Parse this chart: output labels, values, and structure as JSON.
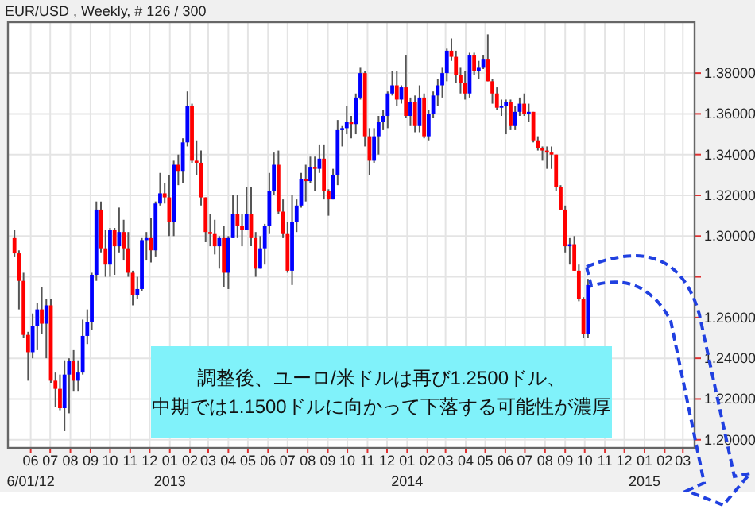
{
  "chart_data": {
    "type": "candlestick",
    "title": "EUR/USD , Weekly, # 126 / 300",
    "annotations": [
      "調整後、ユーロ/米ドルは再び1.2500ドル、",
      "中期では1.1500ドルに向かって下落する可能性が濃厚"
    ],
    "x": [
      "2012-05-07",
      "2012-05-14",
      "2012-05-21",
      "2012-05-28",
      "2012-06-04",
      "2012-06-11",
      "2012-06-18",
      "2012-06-25",
      "2012-07-02",
      "2012-07-09",
      "2012-07-16",
      "2012-07-23",
      "2012-07-30",
      "2012-08-06",
      "2012-08-13",
      "2012-08-20",
      "2012-08-27",
      "2012-09-03",
      "2012-09-10",
      "2012-09-17",
      "2012-09-24",
      "2012-10-01",
      "2012-10-08",
      "2012-10-15",
      "2012-10-22",
      "2012-10-29",
      "2012-11-05",
      "2012-11-12",
      "2012-11-19",
      "2012-11-26",
      "2012-12-03",
      "2012-12-10",
      "2012-12-17",
      "2012-12-24",
      "2012-12-31",
      "2013-01-07",
      "2013-01-14",
      "2013-01-21",
      "2013-01-28",
      "2013-02-04",
      "2013-02-11",
      "2013-02-18",
      "2013-02-25",
      "2013-03-04",
      "2013-03-11",
      "2013-03-18",
      "2013-03-25",
      "2013-04-01",
      "2013-04-08",
      "2013-04-15",
      "2013-04-22",
      "2013-04-29",
      "2013-05-06",
      "2013-05-13",
      "2013-05-20",
      "2013-05-27",
      "2013-06-03",
      "2013-06-10",
      "2013-06-17",
      "2013-06-24",
      "2013-07-01",
      "2013-07-08",
      "2013-07-15",
      "2013-07-22",
      "2013-07-29",
      "2013-08-05",
      "2013-08-12",
      "2013-08-19",
      "2013-08-26",
      "2013-09-02",
      "2013-09-09",
      "2013-09-16",
      "2013-09-23",
      "2013-09-30",
      "2013-10-07",
      "2013-10-14",
      "2013-10-21",
      "2013-10-28",
      "2013-11-04",
      "2013-11-11",
      "2013-11-18",
      "2013-11-25",
      "2013-12-02",
      "2013-12-09",
      "2013-12-16",
      "2013-12-23",
      "2013-12-30",
      "2014-01-06",
      "2014-01-13",
      "2014-01-20",
      "2014-01-27",
      "2014-02-03",
      "2014-02-10",
      "2014-02-17",
      "2014-02-24",
      "2014-03-03",
      "2014-03-10",
      "2014-03-17",
      "2014-03-24",
      "2014-03-31",
      "2014-04-07",
      "2014-04-14",
      "2014-04-21",
      "2014-04-28",
      "2014-05-05",
      "2014-05-12",
      "2014-05-19",
      "2014-05-26",
      "2014-06-02",
      "2014-06-09",
      "2014-06-16",
      "2014-06-23",
      "2014-06-30",
      "2014-07-07",
      "2014-07-14",
      "2014-07-21",
      "2014-07-28",
      "2014-08-04",
      "2014-08-11",
      "2014-08-18",
      "2014-08-25",
      "2014-09-01",
      "2014-09-08",
      "2014-09-15",
      "2014-09-22",
      "2014-09-29",
      "2014-10-06"
    ],
    "ohlc": [
      [
        1.299,
        1.303,
        1.29,
        1.2915
      ],
      [
        1.2915,
        1.293,
        1.264,
        1.278
      ],
      [
        1.278,
        1.282,
        1.25,
        1.2515
      ],
      [
        1.2515,
        1.253,
        1.229,
        1.243
      ],
      [
        1.243,
        1.262,
        1.24,
        1.256
      ],
      [
        1.256,
        1.267,
        1.244,
        1.264
      ],
      [
        1.264,
        1.275,
        1.252,
        1.257
      ],
      [
        1.257,
        1.269,
        1.24,
        1.266
      ],
      [
        1.266,
        1.269,
        1.228,
        1.229
      ],
      [
        1.229,
        1.233,
        1.216,
        1.225
      ],
      [
        1.225,
        1.232,
        1.2145,
        1.2155
      ],
      [
        1.2155,
        1.239,
        1.2042,
        1.232
      ],
      [
        1.232,
        1.24,
        1.213,
        1.2385
      ],
      [
        1.2385,
        1.244,
        1.224,
        1.229
      ],
      [
        1.229,
        1.239,
        1.224,
        1.233
      ],
      [
        1.233,
        1.259,
        1.232,
        1.251
      ],
      [
        1.251,
        1.264,
        1.247,
        1.258
      ],
      [
        1.258,
        1.282,
        1.254,
        1.281
      ],
      [
        1.281,
        1.317,
        1.278,
        1.313
      ],
      [
        1.313,
        1.317,
        1.292,
        1.294
      ],
      [
        1.294,
        1.303,
        1.28,
        1.286
      ],
      [
        1.286,
        1.304,
        1.28,
        1.303
      ],
      [
        1.303,
        1.304,
        1.281,
        1.295
      ],
      [
        1.295,
        1.314,
        1.292,
        1.302
      ],
      [
        1.302,
        1.308,
        1.288,
        1.294
      ],
      [
        1.294,
        1.302,
        1.28,
        1.282
      ],
      [
        1.282,
        1.283,
        1.266,
        1.271
      ],
      [
        1.271,
        1.28,
        1.269,
        1.274
      ],
      [
        1.274,
        1.299,
        1.273,
        1.298
      ],
      [
        1.298,
        1.302,
        1.288,
        1.299
      ],
      [
        1.299,
        1.309,
        1.287,
        1.293
      ],
      [
        1.293,
        1.317,
        1.29,
        1.316
      ],
      [
        1.316,
        1.331,
        1.315,
        1.321
      ],
      [
        1.321,
        1.326,
        1.316,
        1.319
      ],
      [
        1.319,
        1.33,
        1.3,
        1.307
      ],
      [
        1.307,
        1.337,
        1.3,
        1.335
      ],
      [
        1.335,
        1.34,
        1.325,
        1.332
      ],
      [
        1.332,
        1.348,
        1.326,
        1.346
      ],
      [
        1.346,
        1.371,
        1.344,
        1.364
      ],
      [
        1.364,
        1.365,
        1.336,
        1.337
      ],
      [
        1.337,
        1.347,
        1.33,
        1.336
      ],
      [
        1.336,
        1.342,
        1.315,
        1.319
      ],
      [
        1.319,
        1.319,
        1.297,
        1.302
      ],
      [
        1.302,
        1.311,
        1.295,
        1.301
      ],
      [
        1.301,
        1.308,
        1.291,
        1.295
      ],
      [
        1.295,
        1.3,
        1.284,
        1.299
      ],
      [
        1.299,
        1.305,
        1.275,
        1.282
      ],
      [
        1.282,
        1.3,
        1.274,
        1.299
      ],
      [
        1.299,
        1.32,
        1.299,
        1.311
      ],
      [
        1.311,
        1.32,
        1.299,
        1.305
      ],
      [
        1.305,
        1.311,
        1.295,
        1.303
      ],
      [
        1.303,
        1.324,
        1.303,
        1.311
      ],
      [
        1.311,
        1.324,
        1.295,
        1.299
      ],
      [
        1.299,
        1.302,
        1.28,
        1.284
      ],
      [
        1.284,
        1.3,
        1.284,
        1.294
      ],
      [
        1.294,
        1.306,
        1.286,
        1.305
      ],
      [
        1.305,
        1.331,
        1.301,
        1.322
      ],
      [
        1.322,
        1.341,
        1.32,
        1.335
      ],
      [
        1.335,
        1.342,
        1.311,
        1.312
      ],
      [
        1.312,
        1.318,
        1.299,
        1.301
      ],
      [
        1.301,
        1.307,
        1.282,
        1.283
      ],
      [
        1.283,
        1.32,
        1.276,
        1.307
      ],
      [
        1.307,
        1.318,
        1.302,
        1.315
      ],
      [
        1.315,
        1.331,
        1.314,
        1.328
      ],
      [
        1.328,
        1.335,
        1.317,
        1.327
      ],
      [
        1.327,
        1.339,
        1.326,
        1.334
      ],
      [
        1.334,
        1.339,
        1.322,
        1.333
      ],
      [
        1.333,
        1.345,
        1.331,
        1.338
      ],
      [
        1.338,
        1.345,
        1.318,
        1.322
      ],
      [
        1.322,
        1.323,
        1.31,
        1.318
      ],
      [
        1.318,
        1.333,
        1.318,
        1.33
      ],
      [
        1.33,
        1.357,
        1.325,
        1.352
      ],
      [
        1.352,
        1.354,
        1.344,
        1.353
      ],
      [
        1.353,
        1.364,
        1.35,
        1.356
      ],
      [
        1.356,
        1.359,
        1.348,
        1.355
      ],
      [
        1.355,
        1.37,
        1.35,
        1.368
      ],
      [
        1.368,
        1.383,
        1.367,
        1.38
      ],
      [
        1.38,
        1.381,
        1.344,
        1.349
      ],
      [
        1.349,
        1.353,
        1.33,
        1.337
      ],
      [
        1.337,
        1.353,
        1.336,
        1.349
      ],
      [
        1.349,
        1.359,
        1.34,
        1.356
      ],
      [
        1.356,
        1.362,
        1.352,
        1.359
      ],
      [
        1.359,
        1.371,
        1.353,
        1.37
      ],
      [
        1.37,
        1.381,
        1.369,
        1.374
      ],
      [
        1.374,
        1.381,
        1.364,
        1.367
      ],
      [
        1.367,
        1.374,
        1.365,
        1.373
      ],
      [
        1.373,
        1.389,
        1.358,
        1.359
      ],
      [
        1.359,
        1.368,
        1.354,
        1.366
      ],
      [
        1.366,
        1.369,
        1.351,
        1.354
      ],
      [
        1.354,
        1.374,
        1.351,
        1.368
      ],
      [
        1.368,
        1.37,
        1.348,
        1.349
      ],
      [
        1.349,
        1.362,
        1.347,
        1.36
      ],
      [
        1.36,
        1.371,
        1.358,
        1.369
      ],
      [
        1.369,
        1.377,
        1.364,
        1.374
      ],
      [
        1.374,
        1.383,
        1.368,
        1.38
      ],
      [
        1.38,
        1.392,
        1.376,
        1.391
      ],
      [
        1.391,
        1.397,
        1.386,
        1.388
      ],
      [
        1.388,
        1.391,
        1.375,
        1.379
      ],
      [
        1.379,
        1.383,
        1.37,
        1.375
      ],
      [
        1.375,
        1.381,
        1.367,
        1.37
      ],
      [
        1.37,
        1.39,
        1.368,
        1.389
      ],
      [
        1.389,
        1.39,
        1.379,
        1.381
      ],
      [
        1.381,
        1.386,
        1.377,
        1.383
      ],
      [
        1.383,
        1.389,
        1.382,
        1.387
      ],
      [
        1.387,
        1.399,
        1.376,
        1.376
      ],
      [
        1.376,
        1.377,
        1.365,
        1.37
      ],
      [
        1.37,
        1.373,
        1.362,
        1.363
      ],
      [
        1.363,
        1.367,
        1.359,
        1.364
      ],
      [
        1.364,
        1.367,
        1.35,
        1.366
      ],
      [
        1.366,
        1.367,
        1.352,
        1.354
      ],
      [
        1.354,
        1.364,
        1.352,
        1.361
      ],
      [
        1.361,
        1.368,
        1.359,
        1.365
      ],
      [
        1.365,
        1.37,
        1.359,
        1.36
      ],
      [
        1.36,
        1.365,
        1.356,
        1.361
      ],
      [
        1.361,
        1.361,
        1.346,
        1.347
      ],
      [
        1.347,
        1.349,
        1.342,
        1.343
      ],
      [
        1.343,
        1.344,
        1.337,
        1.342
      ],
      [
        1.342,
        1.344,
        1.333,
        1.341
      ],
      [
        1.341,
        1.344,
        1.333,
        1.34
      ],
      [
        1.34,
        1.34,
        1.322,
        1.324
      ],
      [
        1.324,
        1.325,
        1.313,
        1.313
      ],
      [
        1.313,
        1.315,
        1.292,
        1.295
      ],
      [
        1.295,
        1.299,
        1.286,
        1.296
      ],
      [
        1.296,
        1.3,
        1.283,
        1.283
      ],
      [
        1.283,
        1.286,
        1.268,
        1.269
      ],
      [
        1.269,
        1.27,
        1.25,
        1.252
      ],
      [
        1.252,
        1.279,
        1.25,
        1.276
      ]
    ],
    "xlim": [
      "2012-04-27",
      "2015-03-19"
    ],
    "xticks": [
      {
        "value": "2012-06-01",
        "label": "06\n6/01/12"
      },
      {
        "value": "2012-07-01",
        "label": "07"
      },
      {
        "value": "2012-08-01",
        "label": "08"
      },
      {
        "value": "2012-09-01",
        "label": "09"
      },
      {
        "value": "2012-10-01",
        "label": "10"
      },
      {
        "value": "2012-11-01",
        "label": "11"
      },
      {
        "value": "2012-12-01",
        "label": "12"
      },
      {
        "value": "2013-01-01",
        "label": "01\n2013"
      },
      {
        "value": "2013-02-01",
        "label": "02"
      },
      {
        "value": "2013-03-01",
        "label": "03"
      },
      {
        "value": "2013-04-01",
        "label": "04"
      },
      {
        "value": "2013-05-01",
        "label": "05"
      },
      {
        "value": "2013-06-01",
        "label": "06"
      },
      {
        "value": "2013-07-01",
        "label": "07"
      },
      {
        "value": "2013-08-01",
        "label": "08"
      },
      {
        "value": "2013-09-01",
        "label": "09"
      },
      {
        "value": "2013-10-01",
        "label": "10"
      },
      {
        "value": "2013-11-01",
        "label": "11"
      },
      {
        "value": "2013-12-01",
        "label": "12"
      },
      {
        "value": "2014-01-01",
        "label": "01\n2014"
      },
      {
        "value": "2014-02-01",
        "label": "02"
      },
      {
        "value": "2014-03-01",
        "label": "03"
      },
      {
        "value": "2014-04-01",
        "label": "04"
      },
      {
        "value": "2014-05-01",
        "label": "05"
      },
      {
        "value": "2014-06-01",
        "label": "06"
      },
      {
        "value": "2014-07-01",
        "label": "07"
      },
      {
        "value": "2014-08-01",
        "label": "08"
      },
      {
        "value": "2014-09-01",
        "label": "09"
      },
      {
        "value": "2014-10-01",
        "label": "10"
      },
      {
        "value": "2014-11-01",
        "label": "11"
      },
      {
        "value": "2014-12-01",
        "label": "12"
      },
      {
        "value": "2015-01-01",
        "label": "01\n2015"
      },
      {
        "value": "2015-02-01",
        "label": "02"
      },
      {
        "value": "2015-03-01",
        "label": "03"
      }
    ],
    "ylim": [
      1.196,
      1.405
    ],
    "yticks": [
      {
        "value": 1.2,
        "label": "1.20000"
      },
      {
        "value": 1.22,
        "label": "1.22000"
      },
      {
        "value": 1.24,
        "label": "1.24000"
      },
      {
        "value": 1.26,
        "label": "1.26000"
      },
      {
        "value": 1.28,
        "label": null
      },
      {
        "value": 1.3,
        "label": "1.30000"
      },
      {
        "value": 1.32,
        "label": "1.32000"
      },
      {
        "value": 1.34,
        "label": "1.34000"
      },
      {
        "value": 1.36,
        "label": "1.36000"
      },
      {
        "value": 1.38,
        "label": "1.38000"
      }
    ],
    "grid": true
  }
}
